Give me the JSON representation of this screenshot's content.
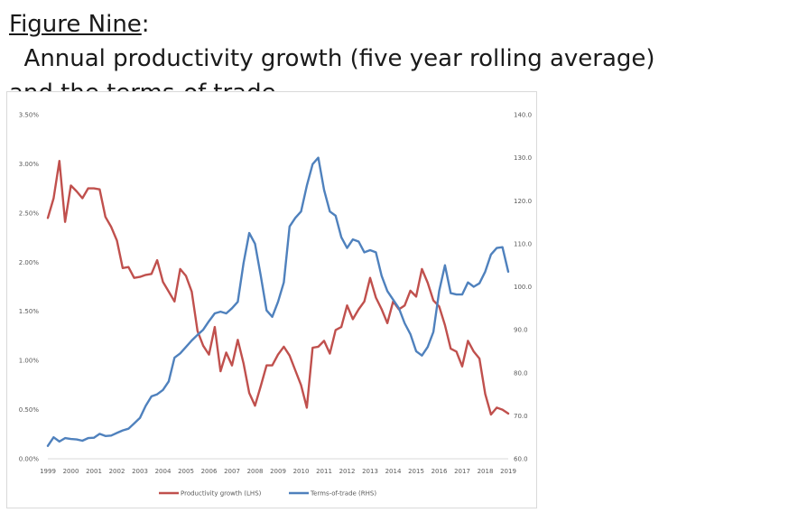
{
  "title": {
    "lead": "Figure Nine",
    "sep": ":",
    "rest": "  Annual productivity growth (five year rolling average)",
    "line2": "and the terms-of-trade"
  },
  "chart_data": {
    "type": "line",
    "x_ticks": [
      "1999",
      "2000",
      "2001",
      "2002",
      "2003",
      "2004",
      "2005",
      "2006",
      "2007",
      "2008",
      "2009",
      "2010",
      "2011",
      "2012",
      "2013",
      "2014",
      "2015",
      "2016",
      "2017",
      "2018",
      "2019"
    ],
    "y_left": {
      "ticks": [
        "0.00%",
        "0.50%",
        "1.00%",
        "1.50%",
        "2.00%",
        "2.50%",
        "3.00%",
        "3.50%"
      ],
      "range": [
        0,
        3.5
      ]
    },
    "y_right": {
      "ticks": [
        "60.0",
        "70.0",
        "80.0",
        "90.0",
        "100.0",
        "110.0",
        "120.0",
        "130.0",
        "140.0"
      ],
      "range": [
        60,
        140
      ]
    },
    "legend_position": "bottom",
    "grid": false,
    "series": [
      {
        "name": "Productivity growth (LHS)",
        "axis": "left",
        "color": "#c0504d",
        "x": [
          1999.0,
          1999.25,
          1999.5,
          1999.75,
          2000.0,
          2000.25,
          2000.5,
          2000.75,
          2001.0,
          2001.25,
          2001.5,
          2001.75,
          2002.0,
          2002.25,
          2002.5,
          2002.75,
          2003.0,
          2003.25,
          2003.5,
          2003.75,
          2004.0,
          2004.25,
          2004.5,
          2004.75,
          2005.0,
          2005.25,
          2005.5,
          2005.75,
          2006.0,
          2006.25,
          2006.5,
          2006.75,
          2007.0,
          2007.25,
          2007.5,
          2007.75,
          2008.0,
          2008.25,
          2008.5,
          2008.75,
          2009.0,
          2009.25,
          2009.5,
          2009.75,
          2010.0,
          2010.25,
          2010.5,
          2010.75,
          2011.0,
          2011.25,
          2011.5,
          2011.75,
          2012.0,
          2012.25,
          2012.5,
          2012.75,
          2013.0,
          2013.25,
          2013.5,
          2013.75,
          2014.0,
          2014.25,
          2014.5,
          2014.75,
          2015.0,
          2015.25,
          2015.5,
          2015.75,
          2016.0,
          2016.25,
          2016.5,
          2016.75,
          2017.0,
          2017.25,
          2017.5,
          2017.75,
          2018.0,
          2018.25,
          2018.5,
          2018.75,
          2019.0
        ],
        "values": [
          2.45,
          2.65,
          3.03,
          2.41,
          2.78,
          2.72,
          2.65,
          2.75,
          2.75,
          2.74,
          2.46,
          2.36,
          2.22,
          1.94,
          1.95,
          1.84,
          1.85,
          1.87,
          1.88,
          2.02,
          1.8,
          1.7,
          1.6,
          1.93,
          1.86,
          1.7,
          1.3,
          1.15,
          1.06,
          1.34,
          0.89,
          1.08,
          0.95,
          1.21,
          0.97,
          0.67,
          0.54,
          0.74,
          0.95,
          0.95,
          1.06,
          1.14,
          1.05,
          0.9,
          0.75,
          0.52,
          1.13,
          1.14,
          1.2,
          1.07,
          1.31,
          1.34,
          1.56,
          1.42,
          1.52,
          1.6,
          1.84,
          1.64,
          1.52,
          1.38,
          1.6,
          1.52,
          1.56,
          1.71,
          1.65,
          1.93,
          1.79,
          1.61,
          1.55,
          1.36,
          1.12,
          1.09,
          0.94,
          1.2,
          1.09,
          1.02,
          0.66,
          0.45,
          0.52,
          0.5,
          0.46
        ]
      },
      {
        "name": "Terms-of-trade (RHS)",
        "axis": "right",
        "color": "#4f81bd",
        "x": [
          1999.0,
          1999.25,
          1999.5,
          1999.75,
          2000.0,
          2000.25,
          2000.5,
          2000.75,
          2001.0,
          2001.25,
          2001.5,
          2001.75,
          2002.0,
          2002.25,
          2002.5,
          2002.75,
          2003.0,
          2003.25,
          2003.5,
          2003.75,
          2004.0,
          2004.25,
          2004.5,
          2004.75,
          2005.0,
          2005.25,
          2005.5,
          2005.75,
          2006.0,
          2006.25,
          2006.5,
          2006.75,
          2007.0,
          2007.25,
          2007.5,
          2007.75,
          2008.0,
          2008.25,
          2008.5,
          2008.75,
          2009.0,
          2009.25,
          2009.5,
          2009.75,
          2010.0,
          2010.25,
          2010.5,
          2010.75,
          2011.0,
          2011.25,
          2011.5,
          2011.75,
          2012.0,
          2012.25,
          2012.5,
          2012.75,
          2013.0,
          2013.25,
          2013.5,
          2013.75,
          2014.0,
          2014.25,
          2014.5,
          2014.75,
          2015.0,
          2015.25,
          2015.5,
          2015.75,
          2016.0,
          2016.25,
          2016.5,
          2016.75,
          2017.0,
          2017.25,
          2017.5,
          2017.75,
          2018.0,
          2018.25,
          2018.5,
          2018.75,
          2019.0
        ],
        "values": [
          63.0,
          65.0,
          64.0,
          64.8,
          64.6,
          64.5,
          64.2,
          64.8,
          64.9,
          65.8,
          65.3,
          65.4,
          66.0,
          66.6,
          67.0,
          68.2,
          69.5,
          72.3,
          74.5,
          75.0,
          76.0,
          78.0,
          83.5,
          84.5,
          86.0,
          87.5,
          88.8,
          90.0,
          92.0,
          93.8,
          94.2,
          93.8,
          95.0,
          96.5,
          105.5,
          112.5,
          110.0,
          102.5,
          94.5,
          93.0,
          96.5,
          101.0,
          114.0,
          116.0,
          117.5,
          123.5,
          128.5,
          130.0,
          122.5,
          117.5,
          116.5,
          111.5,
          109.0,
          111.0,
          110.5,
          108.0,
          108.5,
          108.0,
          102.5,
          99.0,
          97.0,
          95.0,
          91.5,
          89.0,
          85.0,
          84.0,
          86.0,
          89.5,
          99.0,
          105.0,
          98.5,
          98.2,
          98.2,
          101.0,
          100.0,
          100.8,
          103.5,
          107.5,
          109.0,
          109.2,
          103.5
        ]
      }
    ]
  }
}
